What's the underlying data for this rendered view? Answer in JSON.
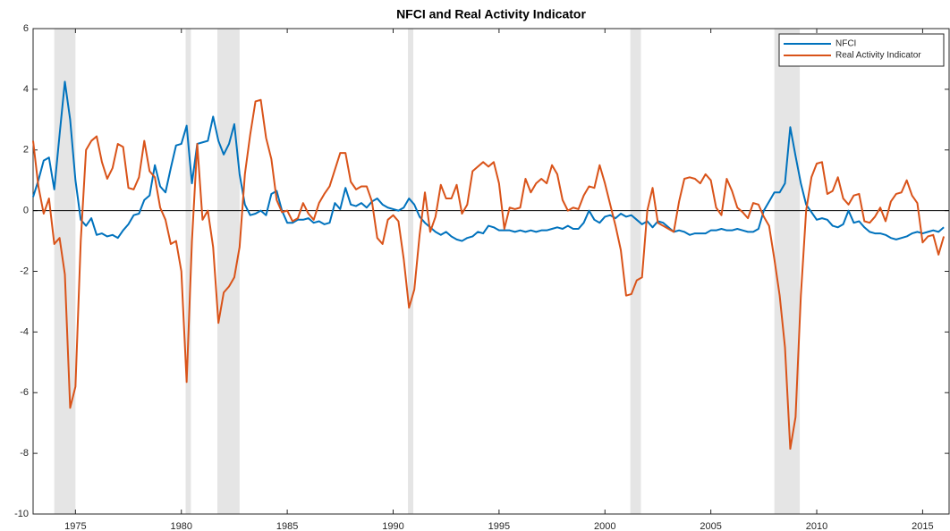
{
  "chart_data": {
    "type": "line",
    "title": "NFCI and Real Activity Indicator",
    "x": [
      1973,
      1973.25,
      1973.5,
      1973.75,
      1974,
      1974.25,
      1974.5,
      1974.75,
      1975,
      1975.25,
      1975.5,
      1975.75,
      1976,
      1976.25,
      1976.5,
      1976.75,
      1977,
      1977.25,
      1977.5,
      1977.75,
      1978,
      1978.25,
      1978.5,
      1978.75,
      1979,
      1979.25,
      1979.5,
      1979.75,
      1980,
      1980.25,
      1980.5,
      1980.75,
      1981,
      1981.25,
      1981.5,
      1981.75,
      1982,
      1982.25,
      1982.5,
      1982.75,
      1983,
      1983.25,
      1983.5,
      1983.75,
      1984,
      1984.25,
      1984.5,
      1984.75,
      1985,
      1985.25,
      1985.5,
      1985.75,
      1986,
      1986.25,
      1986.5,
      1986.75,
      1987,
      1987.25,
      1987.5,
      1987.75,
      1988,
      1988.25,
      1988.5,
      1988.75,
      1989,
      1989.25,
      1989.5,
      1989.75,
      1990,
      1990.25,
      1990.5,
      1990.75,
      1991,
      1991.25,
      1991.5,
      1991.75,
      1992,
      1992.25,
      1992.5,
      1992.75,
      1993,
      1993.25,
      1993.5,
      1993.75,
      1994,
      1994.25,
      1994.5,
      1994.75,
      1995,
      1995.25,
      1995.5,
      1995.75,
      1996,
      1996.25,
      1996.5,
      1996.75,
      1997,
      1997.25,
      1997.5,
      1997.75,
      1998,
      1998.25,
      1998.5,
      1998.75,
      1999,
      1999.25,
      1999.5,
      1999.75,
      2000,
      2000.25,
      2000.5,
      2000.75,
      2001,
      2001.25,
      2001.5,
      2001.75,
      2002,
      2002.25,
      2002.5,
      2002.75,
      2003,
      2003.25,
      2003.5,
      2003.75,
      2004,
      2004.25,
      2004.5,
      2004.75,
      2005,
      2005.25,
      2005.5,
      2005.75,
      2006,
      2006.25,
      2006.5,
      2006.75,
      2007,
      2007.25,
      2007.5,
      2007.75,
      2008,
      2008.25,
      2008.5,
      2008.75,
      2009,
      2009.25,
      2009.5,
      2009.75,
      2010,
      2010.25,
      2010.5,
      2010.75,
      2011,
      2011.25,
      2011.5,
      2011.75,
      2012,
      2012.25,
      2012.5,
      2012.75,
      2013,
      2013.25,
      2013.5,
      2013.75,
      2014,
      2014.25,
      2014.5,
      2014.75,
      2015,
      2015.25,
      2015.5,
      2015.75,
      2016
    ],
    "series": [
      {
        "name": "NFCI",
        "color": "#0072bd",
        "values": [
          0.45,
          1.0,
          1.65,
          1.75,
          0.7,
          2.5,
          4.25,
          3.0,
          1.0,
          -0.3,
          -0.5,
          -0.25,
          -0.8,
          -0.75,
          -0.85,
          -0.8,
          -0.9,
          -0.65,
          -0.45,
          -0.15,
          -0.1,
          0.35,
          0.5,
          1.5,
          0.8,
          0.6,
          1.4,
          2.15,
          2.2,
          2.8,
          0.9,
          2.2,
          2.25,
          2.3,
          3.1,
          2.3,
          1.85,
          2.2,
          2.85,
          1.2,
          0.2,
          -0.15,
          -0.1,
          0.0,
          -0.15,
          0.55,
          0.65,
          0.0,
          -0.4,
          -0.4,
          -0.3,
          -0.3,
          -0.25,
          -0.4,
          -0.35,
          -0.45,
          -0.4,
          0.25,
          0.05,
          0.75,
          0.2,
          0.15,
          0.25,
          0.1,
          0.3,
          0.4,
          0.2,
          0.1,
          0.05,
          0.0,
          0.1,
          0.4,
          0.2,
          -0.2,
          -0.4,
          -0.55,
          -0.7,
          -0.8,
          -0.7,
          -0.85,
          -0.95,
          -1.0,
          -0.9,
          -0.85,
          -0.7,
          -0.75,
          -0.5,
          -0.55,
          -0.65,
          -0.65,
          -0.65,
          -0.7,
          -0.65,
          -0.7,
          -0.65,
          -0.7,
          -0.65,
          -0.65,
          -0.6,
          -0.55,
          -0.6,
          -0.5,
          -0.6,
          -0.6,
          -0.4,
          0.0,
          -0.3,
          -0.4,
          -0.2,
          -0.15,
          -0.25,
          -0.1,
          -0.2,
          -0.15,
          -0.3,
          -0.45,
          -0.35,
          -0.55,
          -0.35,
          -0.4,
          -0.55,
          -0.7,
          -0.65,
          -0.7,
          -0.8,
          -0.75,
          -0.75,
          -0.75,
          -0.65,
          -0.65,
          -0.6,
          -0.65,
          -0.65,
          -0.6,
          -0.65,
          -0.7,
          -0.7,
          -0.6,
          0.0,
          0.3,
          0.6,
          0.6,
          0.9,
          2.75,
          1.8,
          0.9,
          0.2,
          -0.05,
          -0.3,
          -0.25,
          -0.3,
          -0.5,
          -0.55,
          -0.45,
          0.0,
          -0.4,
          -0.35,
          -0.55,
          -0.7,
          -0.75,
          -0.75,
          -0.8,
          -0.9,
          -0.95,
          -0.9,
          -0.85,
          -0.75,
          -0.7,
          -0.75,
          -0.7,
          -0.65,
          -0.7,
          -0.55
        ]
      },
      {
        "name": "Real Activity Indicator",
        "color": "#d95319",
        "values": [
          2.3,
          0.8,
          -0.1,
          0.4,
          -1.1,
          -0.9,
          -2.1,
          -6.5,
          -5.8,
          -1.0,
          2.0,
          2.3,
          2.45,
          1.6,
          1.05,
          1.4,
          2.2,
          2.1,
          0.75,
          0.7,
          1.1,
          2.3,
          1.3,
          1.1,
          0.1,
          -0.3,
          -1.1,
          -1.0,
          -2.0,
          -5.65,
          -1.0,
          2.2,
          -0.3,
          0.0,
          -1.2,
          -3.7,
          -2.7,
          -2.5,
          -2.2,
          -1.2,
          1.2,
          2.5,
          3.6,
          3.65,
          2.4,
          1.7,
          0.35,
          -0.05,
          0.0,
          -0.35,
          -0.25,
          0.25,
          -0.1,
          -0.3,
          0.25,
          0.55,
          0.8,
          1.35,
          1.9,
          1.9,
          0.95,
          0.7,
          0.8,
          0.8,
          0.3,
          -0.9,
          -1.1,
          -0.3,
          -0.15,
          -0.35,
          -1.6,
          -3.2,
          -2.6,
          -0.8,
          0.6,
          -0.7,
          -0.2,
          0.85,
          0.4,
          0.4,
          0.85,
          -0.1,
          0.2,
          1.3,
          1.45,
          1.6,
          1.45,
          1.6,
          0.9,
          -0.6,
          0.1,
          0.05,
          0.1,
          1.05,
          0.6,
          0.9,
          1.05,
          0.9,
          1.5,
          1.2,
          0.35,
          0.0,
          0.1,
          0.05,
          0.5,
          0.8,
          0.75,
          1.5,
          0.9,
          0.2,
          -0.5,
          -1.3,
          -2.8,
          -2.75,
          -2.3,
          -2.2,
          0.0,
          0.75,
          -0.4,
          -0.5,
          -0.6,
          -0.7,
          0.3,
          1.05,
          1.1,
          1.05,
          0.9,
          1.2,
          1.0,
          0.1,
          -0.15,
          1.05,
          0.65,
          0.1,
          -0.05,
          -0.25,
          0.25,
          0.2,
          -0.2,
          -0.5,
          -1.6,
          -2.8,
          -4.5,
          -7.85,
          -6.8,
          -2.8,
          0.0,
          1.1,
          1.55,
          1.6,
          0.55,
          0.65,
          1.1,
          0.4,
          0.2,
          0.5,
          0.55,
          -0.35,
          -0.4,
          -0.2,
          0.1,
          -0.35,
          0.3,
          0.55,
          0.6,
          1.0,
          0.5,
          0.25,
          -1.05,
          -0.85,
          -0.8,
          -1.45,
          -0.85
        ]
      }
    ],
    "shaded_periods": [
      [
        1974.0,
        1975.0
      ],
      [
        1980.2,
        1980.45
      ],
      [
        1981.7,
        1982.75
      ],
      [
        1990.7,
        1990.95
      ],
      [
        2001.2,
        2001.7
      ],
      [
        2008.0,
        2009.2
      ]
    ],
    "shade_color": "#e5e5e5",
    "reference_line": 0,
    "xlim": [
      1973,
      2016.25
    ],
    "ylim": [
      -10,
      6
    ],
    "xticks": [
      1975,
      1980,
      1985,
      1990,
      1995,
      2000,
      2005,
      2010,
      2015
    ],
    "yticks": [
      -10,
      -8,
      -6,
      -4,
      -2,
      0,
      2,
      4,
      6
    ],
    "legend": "upper right"
  }
}
